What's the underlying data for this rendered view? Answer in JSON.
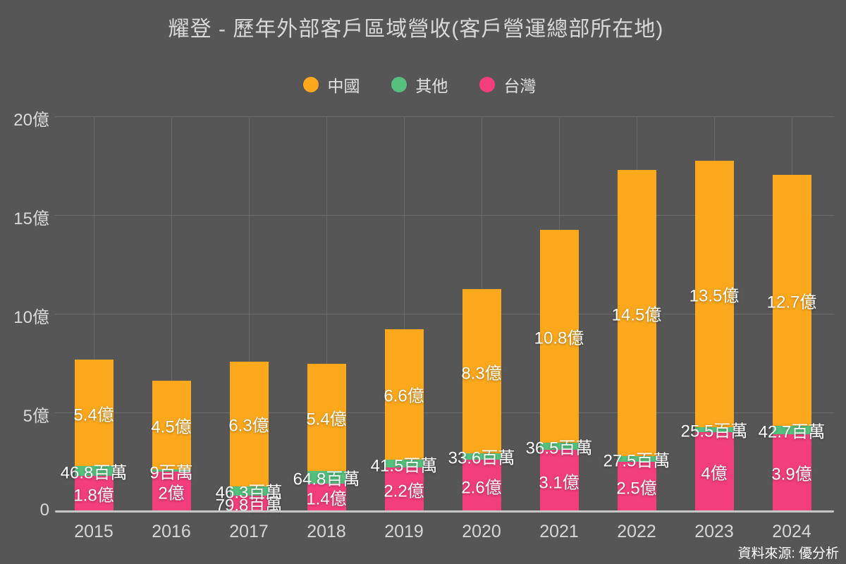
{
  "title": "耀登 - 歷年外部客戶區域營收(客戶營運總部所在地)",
  "source_note": "資料來源: 優分析",
  "colors": {
    "background": "#565656",
    "china": "#FBA81C",
    "others": "#55C17D",
    "taiwan": "#F23E7C",
    "gridline": "#6b6b6b",
    "axis_line": "#c6c6c6",
    "axis_text": "#dadada",
    "title_text": "#d8d8d8",
    "value_text": "#ffffff"
  },
  "legend": [
    {
      "key": "china",
      "label": "中國",
      "color": "#FBA81C"
    },
    {
      "key": "others",
      "label": "其他",
      "color": "#55C17D"
    },
    {
      "key": "taiwan",
      "label": "台灣",
      "color": "#F23E7C"
    }
  ],
  "chart_data": {
    "type": "bar",
    "stacked": true,
    "title": "耀登 - 歷年外部客戶區域營收(客戶營運總部所在地)",
    "unit": "億 (1億 = 100百萬)",
    "legend_position": "top",
    "grid": true,
    "ylim": [
      0,
      20
    ],
    "yticks": [
      {
        "value": 0,
        "label": "0"
      },
      {
        "value": 5,
        "label": "5億"
      },
      {
        "value": 10,
        "label": "10億"
      },
      {
        "value": 15,
        "label": "15億"
      },
      {
        "value": 20,
        "label": "20億"
      }
    ],
    "categories": [
      "2015",
      "2016",
      "2017",
      "2018",
      "2019",
      "2020",
      "2021",
      "2022",
      "2023",
      "2024"
    ],
    "series": [
      {
        "key": "taiwan",
        "name": "台灣",
        "color": "#F23E7C",
        "values_yi": [
          1.8,
          2,
          0.798,
          1.4,
          2.2,
          2.6,
          3.1,
          2.5,
          4,
          3.9
        ],
        "labels": [
          "1.8億",
          "2億",
          "79.8百萬",
          "1.4億",
          "2.2億",
          "2.6億",
          "3.1億",
          "2.5億",
          "4億",
          "3.9億"
        ]
      },
      {
        "key": "others",
        "name": "其他",
        "color": "#55C17D",
        "values_yi": [
          0.468,
          0.09,
          0.463,
          0.648,
          0.415,
          0.336,
          0.365,
          0.275,
          0.255,
          0.427
        ],
        "labels": [
          "46.8百萬",
          "9百萬",
          "46.3百萬",
          "64.8百萬",
          "41.5百萬",
          "33.6百萬",
          "36.5百萬",
          "27.5百萬",
          "25.5百萬",
          "42.7百萬"
        ]
      },
      {
        "key": "china",
        "name": "中國",
        "color": "#FBA81C",
        "values_yi": [
          5.4,
          4.5,
          6.3,
          5.4,
          6.6,
          8.3,
          10.8,
          14.5,
          13.5,
          12.7
        ],
        "labels": [
          "5.4億",
          "4.5億",
          "6.3億",
          "5.4億",
          "6.6億",
          "8.3億",
          "10.8億",
          "14.5億",
          "13.5億",
          "12.7億"
        ]
      }
    ]
  }
}
